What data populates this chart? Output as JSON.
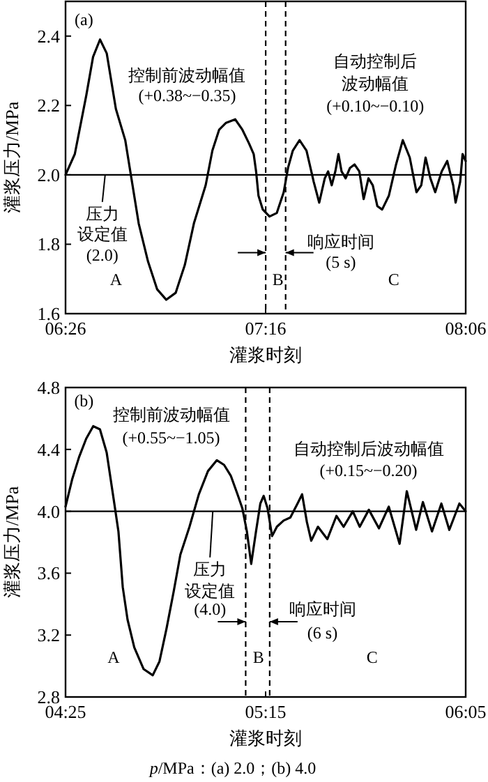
{
  "chart_data": [
    {
      "type": "line",
      "xlabel": "灌浆时刻",
      "ylabel": "灌浆压力/MPa",
      "xlim": [
        6.4333,
        8.1
      ],
      "xticks": [
        {
          "value": 6.4333,
          "label": "06:26"
        },
        {
          "value": 7.2667,
          "label": "07:16"
        },
        {
          "value": 8.1,
          "label": "08:06"
        }
      ],
      "ylim": [
        1.6,
        2.5
      ],
      "yticks": [
        1.6,
        1.8,
        {
          "value": 2,
          "label": "2.0"
        },
        2.2,
        2.4
      ],
      "series": [
        {
          "color": "#000000",
          "x": [
            6.4333,
            6.472,
            6.52,
            6.548,
            6.577,
            6.605,
            6.643,
            6.682,
            6.71,
            6.738,
            6.777,
            6.815,
            6.853,
            6.892,
            6.93,
            6.968,
            7.017,
            7.045,
            7.073,
            7.102,
            7.14,
            7.17,
            7.198,
            7.217,
            7.227,
            7.237,
            7.255,
            7.283,
            7.313,
            7.342,
            7.36,
            7.38,
            7.408,
            7.437,
            7.467,
            7.49,
            7.513,
            7.527,
            7.542,
            7.557,
            7.57,
            7.583,
            7.6,
            7.618,
            7.637,
            7.657,
            7.675,
            7.695,
            7.713,
            7.732,
            7.752,
            7.78,
            7.81,
            7.838,
            7.867,
            7.895,
            7.915,
            7.933,
            7.953,
            7.973,
            8.0,
            8.023,
            8.048,
            8.058,
            8.077,
            8.087,
            8.1
          ],
          "values": [
            2.0,
            2.06,
            2.23,
            2.34,
            2.39,
            2.35,
            2.19,
            2.1,
            1.98,
            1.86,
            1.75,
            1.67,
            1.64,
            1.66,
            1.74,
            1.86,
            1.97,
            2.07,
            2.13,
            2.15,
            2.16,
            2.13,
            2.09,
            2.06,
            2.01,
            1.94,
            1.9,
            1.88,
            1.89,
            1.95,
            2.02,
            2.07,
            2.1,
            2.07,
            1.98,
            1.92,
            1.99,
            2.01,
            1.97,
            2.01,
            2.06,
            2.01,
            1.99,
            2.02,
            2.03,
            2.01,
            1.93,
            1.99,
            1.97,
            1.91,
            1.9,
            1.94,
            2.03,
            2.1,
            2.05,
            1.95,
            1.97,
            2.05,
            1.99,
            1.95,
            2.01,
            2.04,
            1.97,
            1.92,
            1.98,
            2.06,
            2.04
          ]
        }
      ],
      "ref_lines": [
        {
          "axis": "y",
          "value": 2.0,
          "line_style": "solid"
        },
        {
          "axis": "x",
          "value": 7.267,
          "line_style": "dashed"
        },
        {
          "axis": "x",
          "value": 7.35,
          "line_style": "dashed"
        }
      ],
      "annotations": [
        "(a)",
        "控制前波动幅值",
        "(+0.38~−0.35)",
        "自动控制后",
        "波动幅值",
        "(+0.10~−0.10)",
        "压力",
        "设定值",
        "(2.0)",
        "A",
        "B",
        "C",
        "响应时间",
        "(5 s)"
      ]
    },
    {
      "type": "line",
      "xlabel": "灌浆时刻",
      "ylabel": "灌浆压力/MPa",
      "xlim": [
        4.4167,
        6.0833
      ],
      "xticks": [
        {
          "value": 4.4167,
          "label": "04:25"
        },
        {
          "value": 5.25,
          "label": "05:15"
        },
        {
          "value": 6.0833,
          "label": "06:05"
        }
      ],
      "ylim": [
        2.8,
        4.8
      ],
      "yticks": [
        2.8,
        3.2,
        3.6,
        {
          "value": 4,
          "label": "4.0"
        },
        4.4,
        4.8
      ],
      "series": [
        {
          "color": "#000000",
          "x": [
            4.4167,
            4.445,
            4.473,
            4.503,
            4.532,
            4.56,
            4.588,
            4.617,
            4.637,
            4.655,
            4.675,
            4.703,
            4.742,
            4.78,
            4.808,
            4.837,
            4.867,
            4.895,
            4.933,
            4.972,
            5.01,
            5.047,
            5.077,
            5.105,
            5.133,
            5.153,
            5.172,
            5.19,
            5.21,
            5.228,
            5.242,
            5.258,
            5.277,
            5.297,
            5.325,
            5.353,
            5.383,
            5.402,
            5.422,
            5.44,
            5.468,
            5.507,
            5.545,
            5.575,
            5.613,
            5.642,
            5.68,
            5.722,
            5.763,
            5.808,
            5.838,
            5.877,
            5.905,
            5.943,
            5.982,
            6.015,
            6.057,
            6.083
          ],
          "values": [
            4.03,
            4.21,
            4.35,
            4.47,
            4.55,
            4.53,
            4.38,
            4.08,
            3.87,
            3.51,
            3.3,
            3.12,
            2.98,
            2.94,
            3.03,
            3.24,
            3.48,
            3.72,
            3.9,
            4.11,
            4.26,
            4.33,
            4.3,
            4.23,
            4.11,
            4.02,
            3.87,
            3.66,
            3.87,
            4.05,
            4.1,
            4.02,
            3.84,
            3.9,
            3.94,
            3.96,
            4.05,
            4.11,
            3.93,
            3.81,
            3.9,
            3.82,
            3.97,
            3.9,
            4.0,
            3.9,
            4.01,
            3.89,
            4.03,
            3.79,
            4.13,
            3.88,
            4.06,
            3.87,
            4.05,
            3.88,
            4.05,
            4.0
          ]
        }
      ],
      "ref_lines": [
        {
          "axis": "y",
          "value": 4.0,
          "line_style": "solid"
        },
        {
          "axis": "x",
          "value": 5.167,
          "line_style": "dashed"
        },
        {
          "axis": "x",
          "value": 5.267,
          "line_style": "dashed"
        }
      ],
      "annotations": [
        "(b)",
        "控制前波动幅值",
        "(+0.55~−1.05)",
        "自动控制后波动幅值",
        "(+0.15~−0.20)",
        "压力",
        "设定值",
        "(4.0)",
        "A",
        "B",
        "C",
        "响应时间",
        "(6 s)",
        "*p*/MPa：(a) 2.0；(b) 4.0"
      ]
    }
  ]
}
